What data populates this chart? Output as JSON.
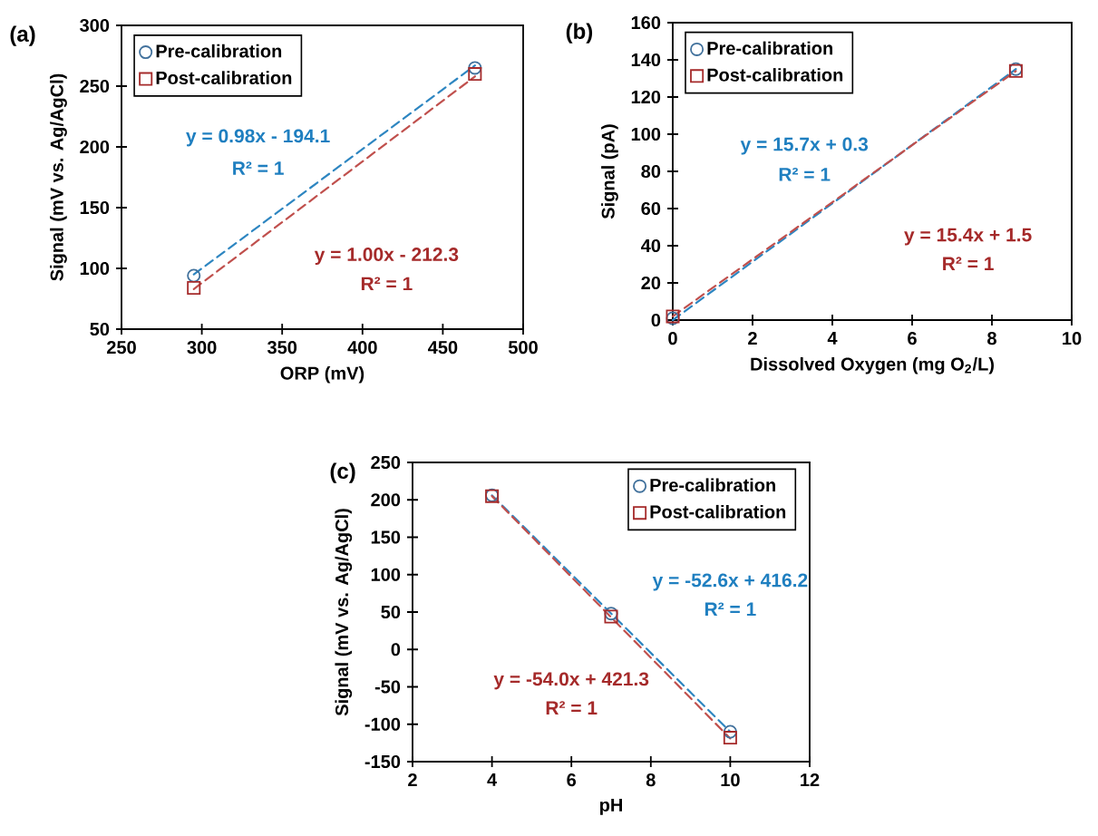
{
  "chart_data": [
    {
      "type": "scatter",
      "title": "(a)",
      "xlabel": "ORP (mV)",
      "ylabel": "Signal (mV vs. Ag/AgCl)",
      "xlim": [
        250,
        500
      ],
      "ylim": [
        50,
        300
      ],
      "xticks": [
        250,
        300,
        350,
        400,
        450,
        500
      ],
      "yticks": [
        50,
        100,
        150,
        200,
        250,
        300
      ],
      "legend": "top left",
      "annotations": [
        "y = 0.98x - 194.1",
        "R² = 1",
        "y = 1.00x - 212.3",
        "R² = 1"
      ],
      "series": [
        {
          "name": "Pre-calibration",
          "type": "scatter",
          "marker": "circle",
          "color": "#41719c",
          "x": [
            295,
            470
          ],
          "values": [
            94,
            265
          ]
        },
        {
          "name": "Post-calibration",
          "type": "scatter",
          "marker": "square",
          "color": "#a52a2a",
          "x": [
            295,
            470
          ],
          "values": [
            84,
            260
          ]
        },
        {
          "type": "line",
          "line_style": "dashed",
          "color": "#2e86c1",
          "x": [
            295,
            470
          ],
          "values": [
            95,
            267
          ]
        },
        {
          "type": "line",
          "line_style": "dashed",
          "color": "#c0504d",
          "x": [
            295,
            470
          ],
          "values": [
            83,
            258
          ]
        }
      ]
    },
    {
      "type": "scatter",
      "title": "(b)",
      "xlabel": "Dissolved Oxygen (mg O$_{2}$/L)",
      "ylabel": "Signal (pA)",
      "xlim": [
        0,
        10
      ],
      "ylim": [
        0,
        160
      ],
      "xticks": [
        0,
        2,
        4,
        6,
        8,
        10
      ],
      "yticks": [
        0,
        20,
        40,
        60,
        80,
        100,
        120,
        140,
        160
      ],
      "legend": "top left",
      "annotations": [
        "y = 15.7x + 0.3",
        "R² = 1",
        "y = 15.4x + 1.5",
        "R² = 1"
      ],
      "series": [
        {
          "name": "Pre-calibration",
          "type": "scatter",
          "marker": "circle",
          "color": "#41719c",
          "x": [
            0,
            8.6
          ],
          "values": [
            1,
            135
          ]
        },
        {
          "name": "Post-calibration",
          "type": "scatter",
          "marker": "square",
          "color": "#a52a2a",
          "x": [
            0,
            8.6
          ],
          "values": [
            2,
            134
          ]
        },
        {
          "type": "line",
          "line_style": "dashed",
          "color": "#2e86c1",
          "x": [
            0,
            8.6
          ],
          "values": [
            0,
            135
          ]
        },
        {
          "type": "line",
          "line_style": "dashed",
          "color": "#c0504d",
          "x": [
            0,
            8.6
          ],
          "values": [
            2,
            134
          ]
        }
      ]
    },
    {
      "type": "scatter",
      "title": "(c)",
      "xlabel": "pH",
      "ylabel": "Signal (mV vs. Ag/AgCl)",
      "xlim": [
        2,
        12
      ],
      "ylim": [
        -150,
        250
      ],
      "xticks": [
        2,
        4,
        6,
        8,
        10,
        12
      ],
      "yticks": [
        -150,
        -100,
        -50,
        0,
        50,
        100,
        150,
        200,
        250
      ],
      "legend": "top right",
      "annotations": [
        "y = -52.6x + 416.2",
        "R² = 1",
        "y = -54.0x + 421.3",
        "R² = 1"
      ],
      "series": [
        {
          "name": "Pre-calibration",
          "type": "scatter",
          "marker": "circle",
          "color": "#41719c",
          "x": [
            4,
            7,
            10
          ],
          "values": [
            206,
            48,
            -110
          ]
        },
        {
          "name": "Post-calibration",
          "type": "scatter",
          "marker": "square",
          "color": "#a52a2a",
          "x": [
            4,
            7,
            10
          ],
          "values": [
            205,
            44,
            -118
          ]
        },
        {
          "type": "line",
          "line_style": "dashed",
          "color": "#2e86c1",
          "x": [
            4,
            10
          ],
          "values": [
            206,
            -110
          ]
        },
        {
          "type": "line",
          "line_style": "dashed",
          "color": "#c0504d",
          "x": [
            4,
            10
          ],
          "values": [
            205,
            -119
          ]
        }
      ]
    }
  ]
}
